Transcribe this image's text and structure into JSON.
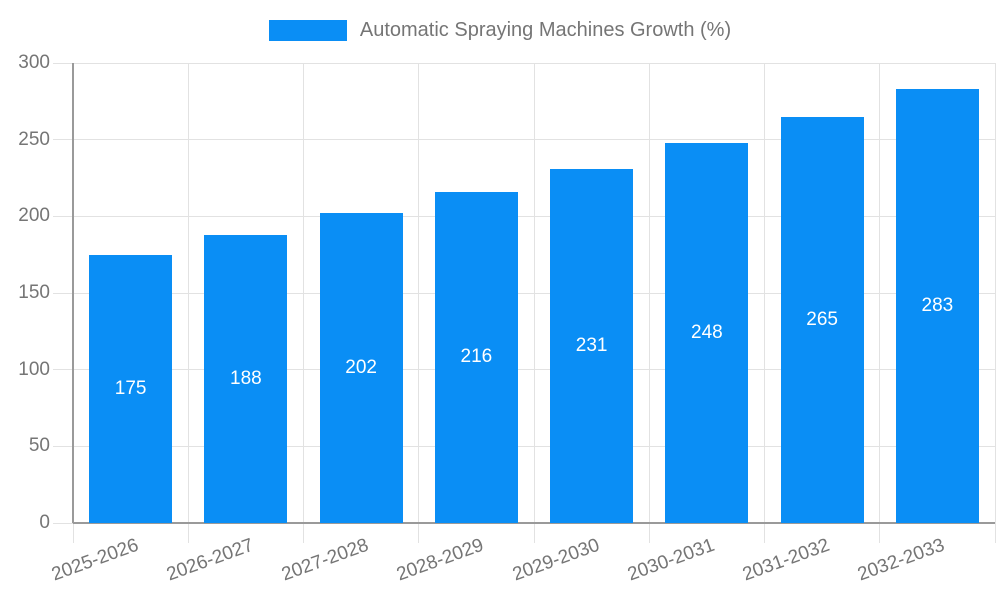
{
  "chart_data": {
    "type": "bar",
    "title": "",
    "categories": [
      "2025-2026",
      "2026-2027",
      "2027-2028",
      "2028-2029",
      "2029-2030",
      "2030-2031",
      "2031-2032",
      "2032-2033"
    ],
    "series": [
      {
        "name": "Automatic Spraying Machines Growth (%)",
        "values": [
          175,
          188,
          202,
          216,
          231,
          248,
          265,
          283
        ]
      }
    ],
    "value_labels_inside_bars": true,
    "xlabel": "",
    "ylabel": "",
    "ylim": [
      0,
      300
    ],
    "ytick_step": 50,
    "ytick_labels": [
      "0",
      "50",
      "100",
      "150",
      "200",
      "250",
      "300"
    ],
    "grid": true,
    "legend_position": "top-center",
    "x_label_rotation_deg": -20,
    "colors": {
      "bar": "#0a8ef5",
      "bar_value_label": "#ffffff",
      "axis_text": "#757575",
      "gridline": "#e2e2e2",
      "axis_line": "#9a9a9a",
      "background": "#ffffff"
    }
  }
}
